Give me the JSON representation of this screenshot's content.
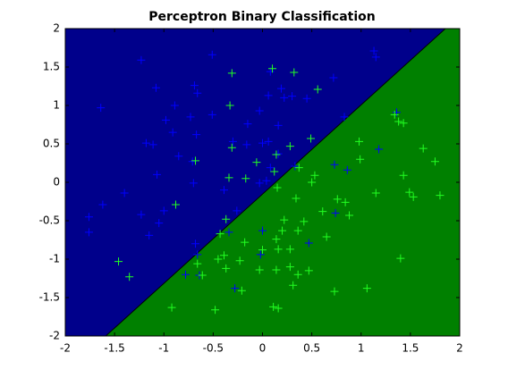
{
  "chart_data": {
    "type": "scatter",
    "title": "Perceptron Binary Classification",
    "xlim": [
      -2,
      2
    ],
    "ylim": [
      -2,
      2
    ],
    "xticks": [
      -2,
      -1.5,
      -1,
      -0.5,
      0,
      0.5,
      1,
      1.5,
      2
    ],
    "yticks": [
      -2,
      -1.5,
      -1,
      -0.5,
      0,
      0.5,
      1,
      1.5,
      2
    ],
    "boundary": {
      "x": [
        -1.59,
        1.855
      ],
      "y": [
        -2,
        2
      ],
      "color": "#000000"
    },
    "region_colors": [
      "#00008b",
      "#008000"
    ],
    "series": [
      {
        "color": "#0000ff",
        "x": [
          -0.51,
          -1.23,
          -1.08,
          -1.64,
          -0.69,
          -0.66,
          -0.89,
          -0.73,
          -0.51,
          -0.98,
          -0.91,
          -0.67,
          -0.15,
          -0.03,
          0.06,
          0.08,
          0.19,
          0.22,
          0.3,
          0.45,
          0.72,
          0.83,
          1.13,
          1.15,
          -1.18,
          -1.11,
          -0.85,
          -0.3,
          -0.16,
          0.0,
          0.06,
          0.16,
          0.16,
          0.04,
          0.08,
          0.33,
          -0.71,
          -1.07,
          -0.7,
          -1.4,
          -1.62,
          -1.76,
          -1.23,
          -1.0,
          -1.15,
          -0.39,
          -0.26,
          -0.34,
          -0.03,
          -0.68,
          -0.66,
          -0.78,
          -0.64,
          -0.28,
          0.0,
          -0.02,
          0.47,
          0.73,
          0.86,
          0.74,
          1.18,
          1.36,
          -1.76,
          -1.05
        ],
        "y": [
          1.66,
          1.59,
          1.23,
          0.97,
          1.26,
          1.16,
          1.0,
          0.85,
          0.88,
          0.81,
          0.65,
          0.62,
          0.76,
          0.93,
          1.13,
          1.44,
          1.22,
          1.1,
          1.12,
          1.09,
          1.36,
          0.85,
          1.71,
          1.63,
          0.51,
          0.49,
          0.34,
          0.53,
          0.49,
          0.51,
          0.53,
          0.74,
          0.37,
          0.02,
          0.19,
          0.21,
          0.27,
          0.1,
          -0.01,
          -0.14,
          -0.29,
          -0.45,
          -0.42,
          -0.37,
          -0.69,
          -0.1,
          -0.37,
          -0.65,
          -0.01,
          -0.8,
          -0.94,
          -1.2,
          -1.21,
          -1.38,
          -0.63,
          -0.94,
          -0.79,
          0.23,
          0.16,
          -0.4,
          0.43,
          0.91,
          -0.65,
          -0.53
        ]
      },
      {
        "color": "#22ff22",
        "x": [
          -0.31,
          0.1,
          0.32,
          0.56,
          -0.33,
          1.34,
          1.38,
          1.43,
          -0.31,
          0.28,
          0.14,
          0.49,
          0.98,
          -0.06,
          0.12,
          0.37,
          0.5,
          0.53,
          -0.34,
          -0.68,
          -0.17,
          0.15,
          0.99,
          1.63,
          1.75,
          0.34,
          0.76,
          0.61,
          0.88,
          0.42,
          0.84,
          1.15,
          1.43,
          1.49,
          1.53,
          1.8,
          -0.37,
          -0.43,
          -0.18,
          0.22,
          0.2,
          0.14,
          0.36,
          0.0,
          0.16,
          0.28,
          0.65,
          -0.66,
          -0.39,
          -0.45,
          -0.37,
          -0.03,
          0.14,
          0.28,
          0.47,
          -0.61,
          -0.21,
          0.31,
          0.36,
          0.73,
          1.06,
          1.4,
          -1.46,
          -1.35,
          -0.92,
          -0.48,
          0.11,
          0.16,
          -0.88,
          -0.23
        ],
        "y": [
          1.42,
          1.48,
          1.43,
          1.21,
          1.0,
          0.88,
          0.79,
          0.77,
          0.45,
          0.47,
          0.36,
          0.57,
          0.53,
          0.26,
          0.14,
          0.19,
          0.0,
          0.09,
          0.06,
          0.28,
          0.05,
          -0.07,
          0.3,
          0.44,
          0.27,
          -0.21,
          -0.22,
          -0.38,
          -0.43,
          -0.51,
          -0.26,
          -0.14,
          0.09,
          -0.13,
          -0.19,
          -0.17,
          -0.48,
          -0.67,
          -0.78,
          -0.49,
          -0.63,
          -0.74,
          -0.63,
          -0.88,
          -0.87,
          -0.87,
          -0.71,
          -1.06,
          -0.95,
          -1.0,
          -1.12,
          -1.14,
          -1.14,
          -1.1,
          -1.15,
          -1.21,
          -1.41,
          -1.34,
          -1.2,
          -1.42,
          -1.38,
          -0.99,
          -1.03,
          -1.23,
          -1.63,
          -1.66,
          -1.62,
          -1.64,
          -0.29,
          -1.02
        ]
      }
    ]
  }
}
